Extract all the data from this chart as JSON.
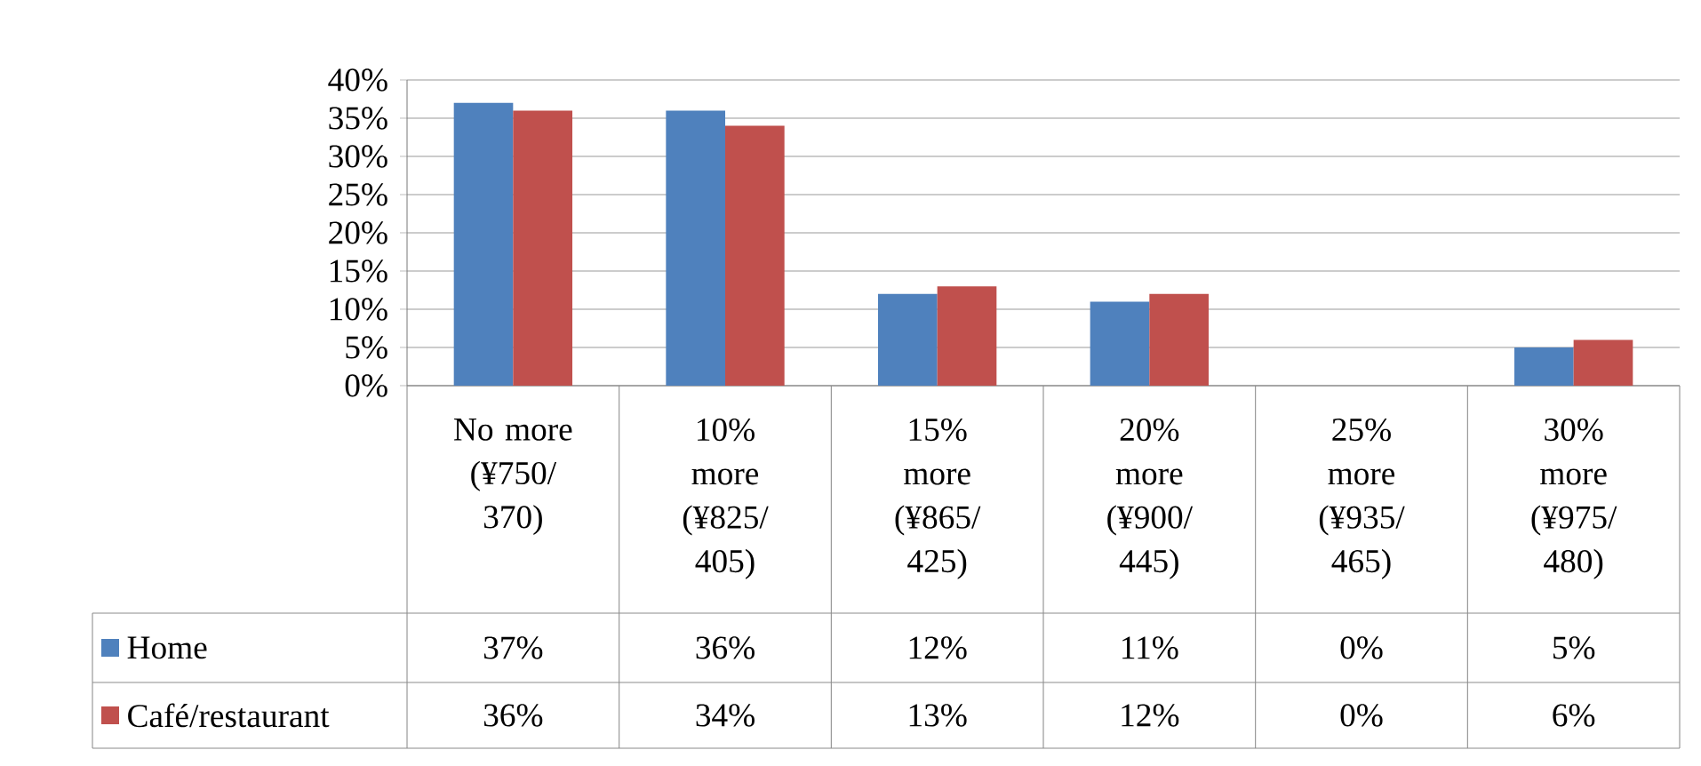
{
  "chart_data": {
    "type": "bar",
    "categories": [
      "No more (¥750/ 370)",
      "10% more (¥825/ 405)",
      "15% more (¥865/ 425)",
      "20% more (¥900/ 445)",
      "25% more (¥935/ 465)",
      "30% more (¥975/ 480)"
    ],
    "series": [
      {
        "name": "Home",
        "color": "#4f81bd",
        "values": [
          37,
          36,
          12,
          11,
          0,
          5
        ],
        "value_labels": [
          "37%",
          "36%",
          "12%",
          "11%",
          "0%",
          "5%"
        ]
      },
      {
        "name": "Café/restaurant",
        "color": "#c0504d",
        "values": [
          36,
          34,
          13,
          12,
          0,
          6
        ],
        "value_labels": [
          "36%",
          "34%",
          "13%",
          "12%",
          "0%",
          "6%"
        ]
      }
    ],
    "ylim": [
      0,
      40
    ],
    "yticks": [
      {
        "value": 0,
        "label": "0%"
      },
      {
        "value": 5,
        "label": "5%"
      },
      {
        "value": 10,
        "label": "10%"
      },
      {
        "value": 15,
        "label": "15%"
      },
      {
        "value": 20,
        "label": "20%"
      },
      {
        "value": 25,
        "label": "25%"
      },
      {
        "value": 30,
        "label": "30%"
      },
      {
        "value": 35,
        "label": "35%"
      },
      {
        "value": 40,
        "label": "40%"
      }
    ],
    "grid": "y",
    "legend": "bottom left"
  }
}
